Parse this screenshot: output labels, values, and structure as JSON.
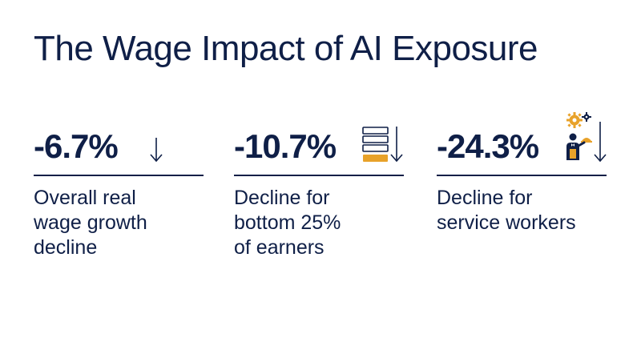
{
  "title": "The Wage Impact of AI Exposure",
  "colors": {
    "navy": "#0f1f47",
    "accent": "#e8a22a"
  },
  "stats": [
    {
      "value": "-6.7%",
      "icon": "down-arrow-icon",
      "description": [
        "Overall real",
        "wage growth",
        "decline"
      ]
    },
    {
      "value": "-10.7%",
      "icon": "stacked-bars-down-arrow-icon",
      "description": [
        "Decline for",
        "bottom 25%",
        "of earners"
      ]
    },
    {
      "value": "-24.3%",
      "icon": "service-worker-gears-down-arrow-icon",
      "description": [
        "Decline for",
        "service workers"
      ]
    }
  ]
}
